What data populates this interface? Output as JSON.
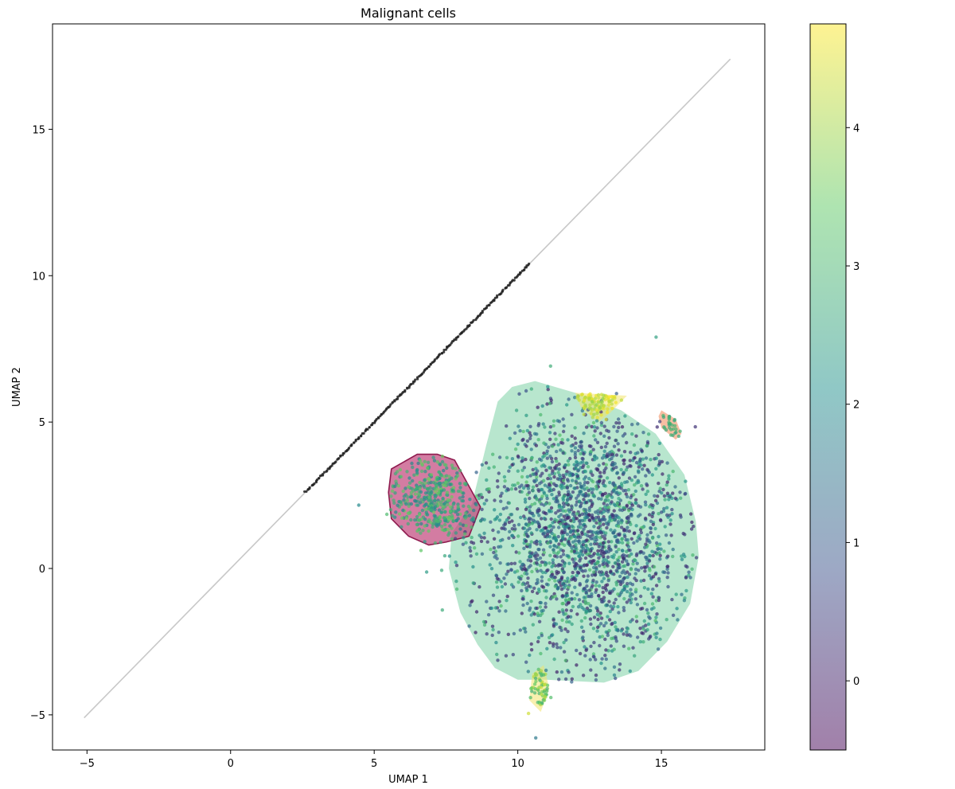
{
  "chart_data": {
    "type": "scatter",
    "title": "Malignant cells",
    "xlabel": "UMAP 1",
    "ylabel": "UMAP 2",
    "xlim": [
      -6.2,
      18.6
    ],
    "ylim": [
      -6.2,
      18.6
    ],
    "xticks": [
      -5,
      0,
      5,
      10,
      15
    ],
    "xtick_labels": [
      "−5",
      "0",
      "5",
      "10",
      "15"
    ],
    "yticks": [
      -5,
      0,
      5,
      10,
      15
    ],
    "ytick_labels": [
      "−5",
      "0",
      "5",
      "10",
      "15"
    ],
    "grid": false,
    "reference_line": {
      "x": [
        -5.1,
        17.4
      ],
      "y": [
        -5.1,
        17.4
      ],
      "color": "#c8c8c8"
    },
    "dense_diagonal_segment": {
      "x": [
        2.6,
        10.4
      ],
      "y": [
        2.6,
        10.4
      ],
      "color": "#222222"
    },
    "colorbar": {
      "colormap": "viridis",
      "alpha": 0.5,
      "range": [
        -0.5,
        4.75
      ],
      "ticks": [
        0,
        1,
        2,
        3,
        4
      ],
      "tick_labels": [
        "0",
        "1",
        "2",
        "3",
        "4"
      ]
    },
    "clusters": [
      {
        "id": "large",
        "hull": [
          [
            10.6,
            6.4
          ],
          [
            12.0,
            6.0
          ],
          [
            13.6,
            5.4
          ],
          [
            14.8,
            4.6
          ],
          [
            15.8,
            3.2
          ],
          [
            16.2,
            1.6
          ],
          [
            16.3,
            0.4
          ],
          [
            16.0,
            -1.2
          ],
          [
            15.2,
            -2.5
          ],
          [
            14.2,
            -3.5
          ],
          [
            13.0,
            -3.9
          ],
          [
            11.0,
            -3.8
          ],
          [
            10.0,
            -3.8
          ],
          [
            9.2,
            -3.4
          ],
          [
            8.6,
            -2.6
          ],
          [
            8.0,
            -1.5
          ],
          [
            7.6,
            0.0
          ],
          [
            7.7,
            1.2
          ],
          [
            8.4,
            2.2
          ],
          [
            8.9,
            4.2
          ],
          [
            9.3,
            5.7
          ],
          [
            9.8,
            6.2
          ]
        ],
        "hull_fill": "#7dd1a6",
        "center": [
          12.3,
          1.2
        ],
        "spread": [
          1.9,
          2.3
        ],
        "points": 2200,
        "value_range": [
          0.0,
          3.2
        ]
      },
      {
        "id": "pink",
        "hull": [
          [
            7.2,
            3.9
          ],
          [
            7.8,
            3.7
          ],
          [
            8.7,
            2.1
          ],
          [
            8.3,
            1.1
          ],
          [
            7.5,
            0.9
          ],
          [
            6.9,
            0.8
          ],
          [
            6.2,
            1.1
          ],
          [
            5.6,
            1.7
          ],
          [
            5.5,
            2.6
          ],
          [
            5.6,
            3.4
          ],
          [
            6.5,
            3.9
          ]
        ],
        "hull_fill": "#c0447a",
        "hull_stroke": "#8e1a4e",
        "center": [
          7.1,
          2.4
        ],
        "spread": [
          0.75,
          0.8
        ],
        "points": 420,
        "value_range": [
          1.8,
          3.6
        ]
      },
      {
        "id": "yellow",
        "hull": [
          [
            12.0,
            6.0
          ],
          [
            13.8,
            5.9
          ],
          [
            13.2,
            5.3
          ],
          [
            12.8,
            5.0
          ],
          [
            12.2,
            5.5
          ]
        ],
        "hull_fill": "#f2e36c",
        "center": [
          12.9,
          5.6
        ],
        "spread": [
          0.5,
          0.25
        ],
        "points": 90,
        "value_range": [
          3.8,
          4.7
        ]
      },
      {
        "id": "orange",
        "hull": [
          [
            15.0,
            5.4
          ],
          [
            15.5,
            5.1
          ],
          [
            15.7,
            4.6
          ],
          [
            15.5,
            4.4
          ],
          [
            15.0,
            4.8
          ],
          [
            14.9,
            5.2
          ]
        ],
        "hull_fill": "#f08858",
        "center": [
          15.3,
          4.9
        ],
        "spread": [
          0.18,
          0.25
        ],
        "points": 28,
        "value_range": [
          2.6,
          3.0
        ]
      },
      {
        "id": "bottom",
        "hull": [
          [
            10.9,
            -3.3
          ],
          [
            11.1,
            -4.1
          ],
          [
            10.8,
            -4.9
          ],
          [
            10.4,
            -4.5
          ],
          [
            10.5,
            -3.6
          ]
        ],
        "hull_fill": "#f2e36c",
        "center": [
          10.8,
          -4.1
        ],
        "spread": [
          0.25,
          0.45
        ],
        "points": 60,
        "value_range": [
          2.6,
          4.4
        ]
      }
    ]
  }
}
